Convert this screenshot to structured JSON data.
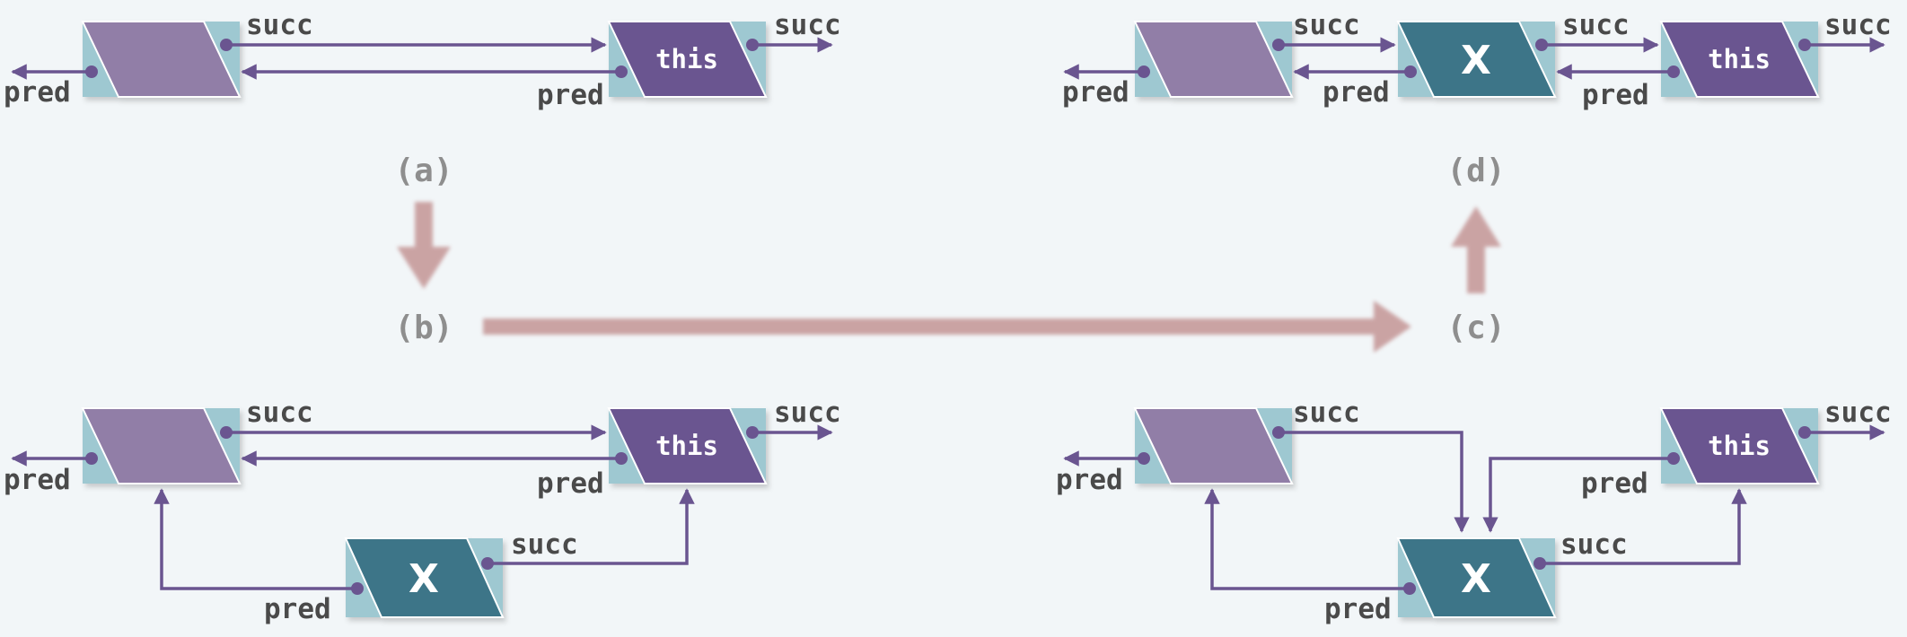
{
  "labels": {
    "succ": "succ",
    "pred": "pred",
    "this": "this",
    "x": "X"
  },
  "steps": {
    "a": "(a)",
    "b": "(b)",
    "c": "(c)",
    "d": "(d)"
  },
  "colors": {
    "background": "#f2f6f8",
    "cell": "#9ec8d1",
    "pred_node": "#917ea7",
    "this_node": "#6a5590",
    "x_node": "#3c7588",
    "link": "#6a5590",
    "step_arrow": "#c49595",
    "text": "#4a4a4a"
  }
}
